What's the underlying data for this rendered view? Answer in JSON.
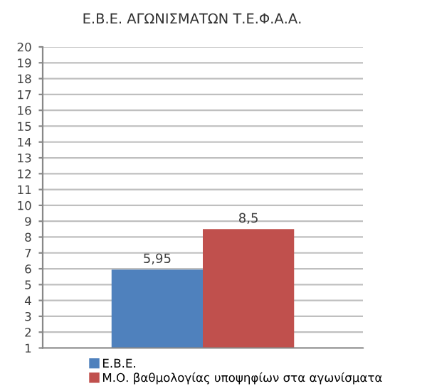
{
  "chart_data": {
    "type": "bar",
    "title": "Ε.Β.Ε. ΑΓΩΝΙΣΜΑΤΩΝ Τ.Ε.Φ.Α.Α.",
    "categories": [
      null
    ],
    "series": [
      {
        "name": "Ε.Β.Ε.",
        "color": "#4f81bd",
        "values": [
          5.95
        ],
        "value_labels": [
          "5,95"
        ]
      },
      {
        "name": "Μ.Ο. βαθμολογίας υποψηφίων στα αγωνίσματα",
        "color": "#c0504d",
        "values": [
          8.5
        ],
        "value_labels": [
          "8,5"
        ]
      }
    ],
    "ylim": [
      1,
      20
    ],
    "yticks": [
      1,
      2,
      3,
      4,
      5,
      6,
      7,
      8,
      9,
      10,
      11,
      12,
      13,
      14,
      15,
      16,
      17,
      18,
      19,
      20
    ],
    "grid": "y",
    "legend": "bottom"
  }
}
